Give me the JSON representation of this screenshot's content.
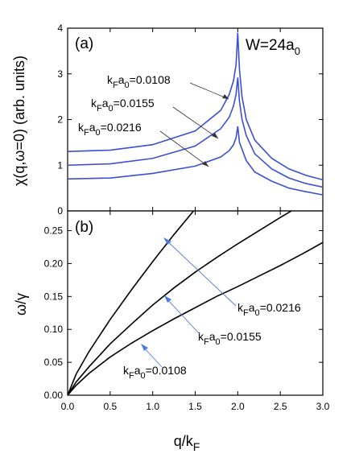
{
  "chart_data": [
    {
      "type": "line",
      "panel": "(a)",
      "annotation_main": "W=24a",
      "annotation_main_sub": "0",
      "ylabel": "χ(q,ω=0) (arb. units)",
      "ylim": [
        0,
        4
      ],
      "xlim": [
        0,
        3
      ],
      "y_ticks": [
        "0",
        "1",
        "2",
        "3",
        "4"
      ],
      "x": [
        0.0,
        0.5,
        1.0,
        1.5,
        1.8,
        1.9,
        1.95,
        1.98,
        2.0,
        2.02,
        2.05,
        2.1,
        2.2,
        2.4,
        2.6,
        2.8,
        3.0
      ],
      "series": [
        {
          "name": "kFa0=0.0108",
          "label_main": "k",
          "label_sub1": "F",
          "label_mid": "a",
          "label_sub2": "0",
          "label_tail": "=0.0108",
          "values": [
            1.3,
            1.33,
            1.45,
            1.75,
            2.2,
            2.55,
            2.85,
            3.2,
            3.9,
            3.1,
            2.5,
            2.0,
            1.55,
            1.15,
            0.92,
            0.78,
            0.68
          ]
        },
        {
          "name": "kFa0=0.0155",
          "label_main": "k",
          "label_sub1": "F",
          "label_mid": "a",
          "label_sub2": "0",
          "label_tail": "=0.0155",
          "values": [
            1.0,
            1.03,
            1.15,
            1.42,
            1.8,
            2.05,
            2.3,
            2.55,
            2.92,
            2.4,
            2.0,
            1.65,
            1.25,
            0.92,
            0.72,
            0.6,
            0.52
          ]
        },
        {
          "name": "kFa0=0.0216",
          "label_main": "k",
          "label_sub1": "F",
          "label_mid": "a",
          "label_sub2": "0",
          "label_tail": "=0.0216",
          "values": [
            0.7,
            0.72,
            0.82,
            0.98,
            1.18,
            1.32,
            1.45,
            1.6,
            1.85,
            1.5,
            1.35,
            1.1,
            0.85,
            0.65,
            0.5,
            0.42,
            0.35
          ]
        }
      ],
      "line_color": "#3a4fd6"
    },
    {
      "type": "line",
      "panel": "(b)",
      "ylabel_main": "ω/γ",
      "xlabel_main": "q/k",
      "xlabel_sub": "F",
      "xlim": [
        0,
        3
      ],
      "ylim": [
        0,
        0.28
      ],
      "x_ticks": [
        "0.0",
        "0.5",
        "1.0",
        "1.5",
        "2.0",
        "2.5",
        "3.0"
      ],
      "y_ticks": [
        "0.00",
        "0.05",
        "0.10",
        "0.15",
        "0.20",
        "0.25"
      ],
      "x": [
        0.0,
        0.1,
        0.25,
        0.5,
        0.75,
        1.0,
        1.25,
        1.5,
        1.75,
        2.0,
        2.25,
        2.5,
        2.75,
        3.0
      ],
      "series": [
        {
          "name": "kFa0=0.0216",
          "label_main": "k",
          "label_sub1": "F",
          "label_mid": "a",
          "label_sub2": "0",
          "label_tail": "=0.0216",
          "values": [
            0.0,
            0.032,
            0.066,
            0.115,
            0.16,
            0.203,
            0.244,
            0.283,
            null,
            null,
            null,
            null,
            null,
            null
          ]
        },
        {
          "name": "kFa0=0.0155",
          "label_main": "k",
          "label_sub1": "F",
          "label_mid": "a",
          "label_sub2": "0",
          "label_tail": "=0.0155",
          "values": [
            0.0,
            0.02,
            0.043,
            0.078,
            0.108,
            0.137,
            0.163,
            0.187,
            0.209,
            0.23,
            0.25,
            0.27,
            0.289,
            null
          ]
        },
        {
          "name": "kFa0=0.0108",
          "label_main": "k",
          "label_sub1": "F",
          "label_mid": "a",
          "label_sub2": "0",
          "label_tail": "=0.0108",
          "values": [
            0.0,
            0.015,
            0.033,
            0.058,
            0.079,
            0.098,
            0.116,
            0.133,
            0.15,
            0.165,
            0.181,
            0.197,
            0.214,
            0.232
          ]
        }
      ],
      "line_color": "#000000",
      "arrow_color": "#4a7be0"
    }
  ]
}
